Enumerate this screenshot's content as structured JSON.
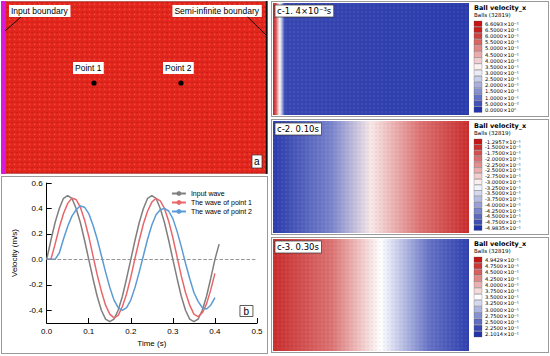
{
  "chart_data": {
    "type": "line",
    "panel_label": "b",
    "x_label": "Time (s)",
    "y_label": "Velocity (m/s)",
    "x": [
      0,
      0.01,
      0.02,
      0.03,
      0.04,
      0.05,
      0.06,
      0.07,
      0.08,
      0.09,
      0.1,
      0.11,
      0.12,
      0.13,
      0.14,
      0.15,
      0.16,
      0.17,
      0.18,
      0.19,
      0.2,
      0.21,
      0.22,
      0.23,
      0.24,
      0.25,
      0.26,
      0.27,
      0.28,
      0.29,
      0.3,
      0.31,
      0.32,
      0.33,
      0.34,
      0.35,
      0.36,
      0.37,
      0.38,
      0.39,
      0.4,
      0.41
    ],
    "series": [
      {
        "name": "Input wave",
        "color": "#7f7f7f",
        "values": [
          0,
          0.15,
          0.29,
          0.4,
          0.48,
          0.5,
          0.48,
          0.4,
          0.29,
          0.15,
          0,
          -0.15,
          -0.29,
          -0.4,
          -0.47,
          -0.49,
          -0.47,
          -0.4,
          -0.29,
          -0.15,
          0,
          0.15,
          0.29,
          0.4,
          0.48,
          0.5,
          0.48,
          0.4,
          0.29,
          0.15,
          0,
          -0.15,
          -0.29,
          -0.4,
          -0.47,
          -0.49,
          -0.47,
          -0.4,
          -0.29,
          -0.15,
          0,
          0.12
        ]
      },
      {
        "name": "The wave of point 1",
        "color": "#e8676b",
        "values": [
          0,
          0,
          0.12,
          0.25,
          0.36,
          0.44,
          0.48,
          0.47,
          0.41,
          0.31,
          0.18,
          0.03,
          -0.12,
          -0.25,
          -0.36,
          -0.43,
          -0.46,
          -0.44,
          -0.37,
          -0.27,
          -0.14,
          0.01,
          0.15,
          0.28,
          0.38,
          0.45,
          0.48,
          0.46,
          0.4,
          0.3,
          0.17,
          0.02,
          -0.13,
          -0.26,
          -0.36,
          -0.43,
          -0.45,
          -0.42,
          -0.35,
          -0.24,
          -0.11,
          null
        ]
      },
      {
        "name": "The wave of point 2",
        "color": "#5b9bd5",
        "values": [
          0,
          0,
          0,
          0.05,
          0.16,
          0.26,
          0.34,
          0.39,
          0.42,
          0.41,
          0.36,
          0.27,
          0.16,
          0.03,
          -0.1,
          -0.22,
          -0.32,
          -0.38,
          -0.4,
          -0.38,
          -0.32,
          -0.22,
          -0.1,
          0.03,
          0.16,
          0.27,
          0.35,
          0.39,
          0.4,
          0.38,
          0.32,
          0.22,
          0.1,
          -0.03,
          -0.15,
          -0.26,
          -0.33,
          -0.38,
          -0.39,
          -0.36,
          -0.3,
          null
        ]
      }
    ],
    "xlim": [
      0,
      0.5
    ],
    "xticks": [
      {
        "value": 0,
        "label": "0.0"
      },
      {
        "value": 0.1,
        "label": "0.1"
      },
      {
        "value": 0.2,
        "label": "0.2"
      },
      {
        "value": 0.3,
        "label": "0.3"
      },
      {
        "value": 0.4,
        "label": "0.4"
      },
      {
        "value": 0.5,
        "label": "0.5"
      }
    ],
    "ylim": [
      -0.5,
      0.6
    ],
    "yticks": [
      {
        "value": -0.4,
        "label": "-0.4"
      },
      {
        "value": -0.2,
        "label": "-0.2"
      },
      {
        "value": 0,
        "label": "0.0"
      },
      {
        "value": 0.2,
        "label": "0.2"
      },
      {
        "value": 0.4,
        "label": "0.4"
      },
      {
        "value": 0.6,
        "label": "0.6"
      }
    ],
    "reference_lines": [
      0
    ],
    "grid": false,
    "legend": "upper right",
    "marker": "none",
    "line_style": "solid"
  },
  "panel_a": {
    "panel_label": "a",
    "input_boundary": "Input boundary",
    "semi_infinite_boundary": "Semi-infinite boundary",
    "point_1": "Point 1",
    "point_2": "Point 2"
  },
  "panels_c": [
    {
      "title": "c-1. 4×10⁻³s",
      "legend_title": "Ball velocity_x",
      "legend_subtitle": "Balls (32819)",
      "ticks": [
        {
          "value": 0.66093,
          "label": "6.6093×10⁻¹"
        },
        {
          "value": 0.65,
          "label": "6.5000×10⁻¹"
        },
        {
          "value": 0.6,
          "label": "6.0000×10⁻¹"
        },
        {
          "value": 0.55,
          "label": "5.5000×10⁻¹"
        },
        {
          "value": 0.5,
          "label": "5.0000×10⁻¹"
        },
        {
          "value": 0.45,
          "label": "4.5000×10⁻¹"
        },
        {
          "value": 0.4,
          "label": "4.0000×10⁻¹"
        },
        {
          "value": 0.35,
          "label": "3.5000×10⁻¹"
        },
        {
          "value": 0.3,
          "label": "3.0000×10⁻¹"
        },
        {
          "value": 0.25,
          "label": "2.5000×10⁻¹"
        },
        {
          "value": 0.2,
          "label": "2.0000×10⁻¹"
        },
        {
          "value": 0.15,
          "label": "1.5000×10⁻¹"
        },
        {
          "value": 0.1,
          "label": "1.0000×10⁻¹"
        },
        {
          "value": 0.05,
          "label": "5.0000×10⁻²"
        },
        {
          "value": 0,
          "label": "0.0000×10⁰"
        }
      ]
    },
    {
      "title": "c-2. 0.10s",
      "legend_title": "Ball velocity_x",
      "legend_subtitle": "Balls (32819)",
      "ticks": [
        {
          "value": -0.12957,
          "label": "-1.2957×10⁻¹"
        },
        {
          "value": -0.15,
          "label": "-1.5000×10⁻¹"
        },
        {
          "value": -0.175,
          "label": "-1.7500×10⁻¹"
        },
        {
          "value": -0.2,
          "label": "-2.0000×10⁻¹"
        },
        {
          "value": -0.225,
          "label": "-2.2500×10⁻¹"
        },
        {
          "value": -0.25,
          "label": "-2.5000×10⁻¹"
        },
        {
          "value": -0.275,
          "label": "-2.7500×10⁻¹"
        },
        {
          "value": -0.3,
          "label": "-3.0000×10⁻¹"
        },
        {
          "value": -0.325,
          "label": "-3.2500×10⁻¹"
        },
        {
          "value": -0.35,
          "label": "-3.5000×10⁻¹"
        },
        {
          "value": -0.375,
          "label": "-3.7500×10⁻¹"
        },
        {
          "value": -0.4,
          "label": "-4.0000×10⁻¹"
        },
        {
          "value": -0.425,
          "label": "-4.2500×10⁻¹"
        },
        {
          "value": -0.45,
          "label": "-4.5000×10⁻¹"
        },
        {
          "value": -0.475,
          "label": "-4.7500×10⁻¹"
        },
        {
          "value": -0.49835,
          "label": "-4.9835×10⁻¹"
        }
      ]
    },
    {
      "title": "c-3. 0.30s",
      "legend_title": "Ball velocity_x",
      "legend_subtitle": "Balls (32819)",
      "ticks": [
        {
          "value": 0.49429,
          "label": "4.9429×10⁻¹"
        },
        {
          "value": 0.475,
          "label": "4.7500×10⁻¹"
        },
        {
          "value": 0.45,
          "label": "4.5000×10⁻¹"
        },
        {
          "value": 0.425,
          "label": "4.2500×10⁻¹"
        },
        {
          "value": 0.4,
          "label": "4.0000×10⁻¹"
        },
        {
          "value": 0.375,
          "label": "3.7500×10⁻¹"
        },
        {
          "value": 0.35,
          "label": "3.5000×10⁻¹"
        },
        {
          "value": 0.325,
          "label": "3.2500×10⁻¹"
        },
        {
          "value": 0.3,
          "label": "3.0000×10⁻¹"
        },
        {
          "value": 0.275,
          "label": "2.7500×10⁻¹"
        },
        {
          "value": 0.25,
          "label": "2.5000×10⁻¹"
        },
        {
          "value": 0.225,
          "label": "2.2500×10⁻¹"
        },
        {
          "value": 0.21014,
          "label": "2.1014×10⁻¹"
        }
      ]
    }
  ]
}
